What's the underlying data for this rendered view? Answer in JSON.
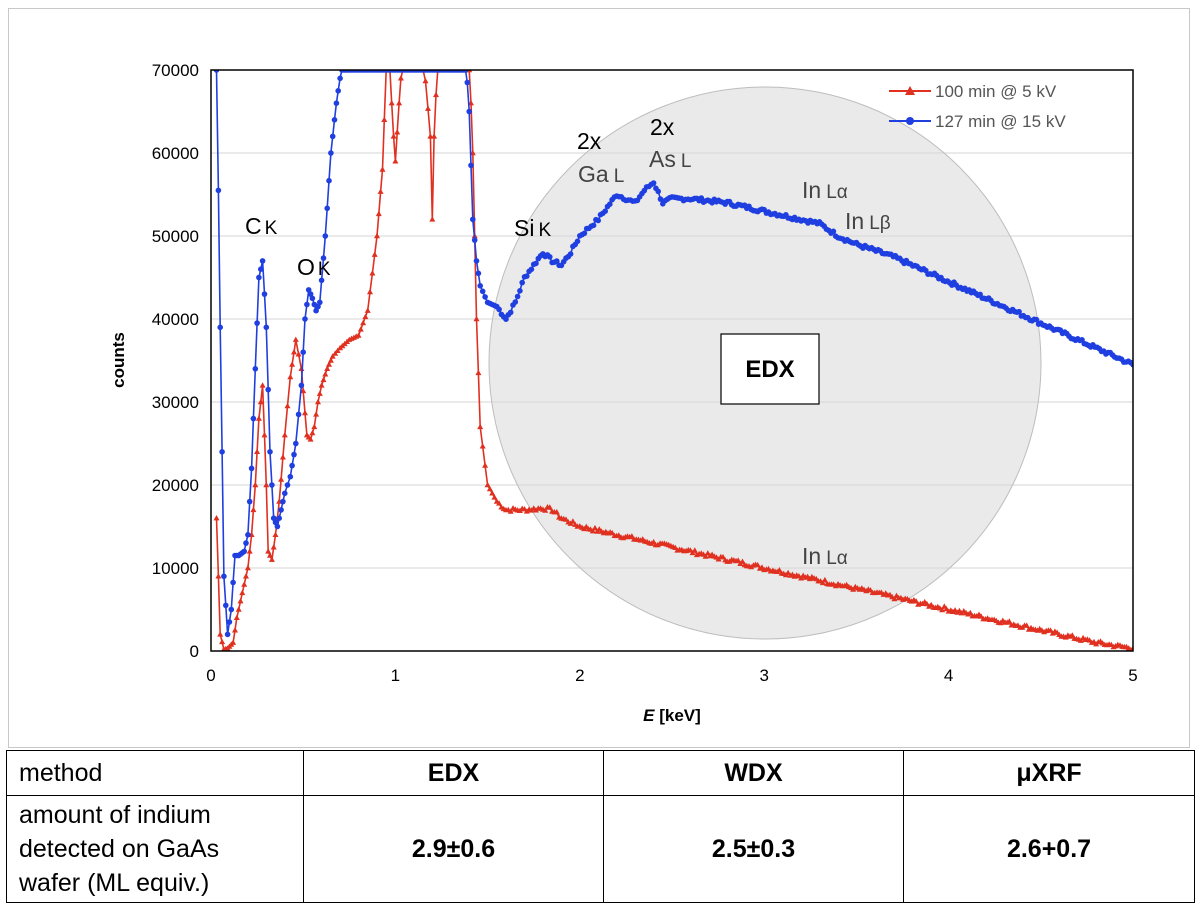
{
  "chart_data": {
    "type": "line",
    "xlabel_italic": "E",
    "xlabel_rest": " [keV]",
    "ylabel": "counts",
    "xlim": [
      0,
      5
    ],
    "ylim": [
      0,
      70000
    ],
    "x_ticks": [
      0,
      1,
      2,
      3,
      4,
      5
    ],
    "y_ticks": [
      0,
      10000,
      20000,
      30000,
      40000,
      50000,
      60000,
      70000
    ],
    "grid": "horizontal",
    "legend_position": "top-right",
    "series": [
      {
        "name": "100 min @ 5 kV",
        "color": "#e03020",
        "marker": "triangle",
        "x": [
          0.03,
          0.05,
          0.07,
          0.09,
          0.12,
          0.14,
          0.16,
          0.18,
          0.2,
          0.22,
          0.24,
          0.26,
          0.28,
          0.3,
          0.31,
          0.33,
          0.35,
          0.37,
          0.4,
          0.43,
          0.46,
          0.49,
          0.52,
          0.54,
          0.56,
          0.58,
          0.6,
          0.63,
          0.66,
          0.7,
          0.75,
          0.8,
          0.85,
          0.9,
          0.93,
          0.95,
          0.97,
          0.98,
          0.99,
          1.0,
          1.02,
          1.04,
          1.06,
          1.1,
          1.15,
          1.19,
          1.2,
          1.21,
          1.23,
          1.26,
          1.3,
          1.33,
          1.36,
          1.38,
          1.4,
          1.42,
          1.44,
          1.46,
          1.5,
          1.55,
          1.6,
          1.7,
          1.8,
          1.85,
          1.9,
          2.0,
          2.2,
          2.4,
          2.6,
          2.8,
          3.0,
          3.2,
          3.4,
          3.6,
          3.8,
          4.0,
          4.2,
          4.4,
          4.6,
          4.8,
          5.0
        ],
        "y": [
          16000,
          2000,
          200,
          300,
          1000,
          4000,
          6000,
          8000,
          10000,
          14000,
          20000,
          28000,
          32000,
          20000,
          12000,
          11000,
          14000,
          18000,
          26000,
          33000,
          37500,
          34000,
          26000,
          25500,
          27000,
          30000,
          32000,
          34000,
          35500,
          36500,
          37500,
          38000,
          41000,
          50000,
          58000,
          70000,
          70000,
          66000,
          62000,
          59000,
          66000,
          72000,
          72000,
          72000,
          72000,
          62000,
          52000,
          62000,
          72000,
          72000,
          72000,
          72000,
          72000,
          72000,
          72000,
          60000,
          40000,
          27000,
          20000,
          18000,
          17000,
          17000,
          17200,
          17000,
          16000,
          15000,
          14000,
          13000,
          12000,
          11000,
          10000,
          9000,
          8000,
          7000,
          6000,
          5000,
          4000,
          3000,
          2000,
          1000,
          300
        ]
      },
      {
        "name": "127 min @ 15 kV",
        "color": "#1f3fe0",
        "marker": "circle",
        "x": [
          0.03,
          0.05,
          0.07,
          0.09,
          0.11,
          0.13,
          0.15,
          0.18,
          0.2,
          0.22,
          0.24,
          0.26,
          0.28,
          0.3,
          0.32,
          0.34,
          0.36,
          0.38,
          0.4,
          0.43,
          0.46,
          0.49,
          0.51,
          0.53,
          0.55,
          0.57,
          0.59,
          0.62,
          0.65,
          0.68,
          0.7,
          0.72,
          0.75,
          0.8,
          0.85,
          0.9,
          1.0,
          1.1,
          1.2,
          1.3,
          1.38,
          1.4,
          1.42,
          1.44,
          1.46,
          1.5,
          1.55,
          1.6,
          1.65,
          1.7,
          1.75,
          1.8,
          1.85,
          1.9,
          1.95,
          2.0,
          2.1,
          2.2,
          2.25,
          2.3,
          2.35,
          2.4,
          2.45,
          2.5,
          2.6,
          2.8,
          3.0,
          3.2,
          3.3,
          3.4,
          3.5,
          3.7,
          3.9,
          4.1,
          4.3,
          4.5,
          4.7,
          4.9,
          5.0
        ],
        "y": [
          72000,
          39000,
          9000,
          2000,
          5000,
          11500,
          11500,
          12000,
          14000,
          22000,
          34000,
          45000,
          47000,
          39000,
          24000,
          16000,
          15000,
          17000,
          19000,
          21000,
          25000,
          32000,
          40000,
          43500,
          42500,
          41000,
          42000,
          50000,
          60000,
          66000,
          69000,
          71000,
          72000,
          72000,
          72000,
          72000,
          72000,
          72000,
          72000,
          72000,
          72000,
          65000,
          52000,
          47000,
          44000,
          42000,
          41500,
          40000,
          42000,
          45000,
          46500,
          48000,
          47000,
          46500,
          48000,
          50000,
          52000,
          55000,
          54500,
          54000,
          55500,
          56500,
          54000,
          54500,
          54500,
          54000,
          53000,
          52000,
          51500,
          50000,
          49000,
          47500,
          45500,
          43500,
          41500,
          39500,
          37500,
          35500,
          34500
        ]
      }
    ],
    "annotations": [
      {
        "main": "C",
        "sub": "K"
      },
      {
        "main": "O",
        "sub": "K"
      },
      {
        "main": "Si",
        "sub": "K"
      },
      {
        "main": "2x",
        "sub": ""
      },
      {
        "main": "Ga",
        "sub": "L"
      },
      {
        "main": "2x",
        "sub": ""
      },
      {
        "main": "As",
        "sub": "L"
      },
      {
        "main": "In",
        "sub": "Lα"
      },
      {
        "main": "In",
        "sub": "Lβ"
      },
      {
        "main": "In",
        "sub": "Lα"
      }
    ],
    "region_label": "EDX"
  },
  "table": {
    "header": {
      "method": "method",
      "edx": "EDX",
      "wdx": "WDX",
      "uxrf": "μXRF"
    },
    "row": {
      "label_line1": "amount of indium",
      "label_line2": "detected on GaAs",
      "label_line3": "wafer (ML equiv.)",
      "edx": "2.9±0.6",
      "wdx": "2.5±0.3",
      "uxrf": "2.6+0.7"
    }
  }
}
